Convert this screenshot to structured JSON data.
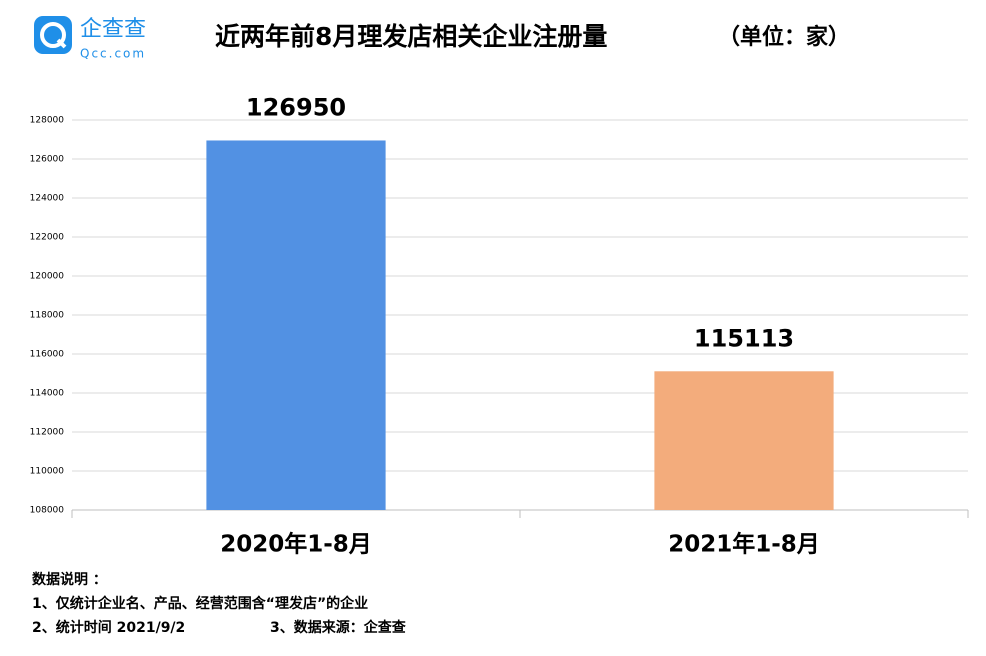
{
  "chart_data": {
    "type": "bar",
    "logo": {
      "name": "企查查",
      "site": "Qcc.com"
    },
    "title": "近两年前8月理发店相关企业注册量",
    "unit_note": "（单位：家）",
    "categories": [
      "2020年1-8月",
      "2021年1-8月"
    ],
    "values": [
      126950,
      115113
    ],
    "colors": [
      "#5291e3",
      "#f3ac7c"
    ],
    "ylim": [
      108000,
      128000
    ],
    "yticks": [
      108000,
      110000,
      112000,
      114000,
      116000,
      118000,
      120000,
      122000,
      124000,
      126000,
      128000
    ],
    "grid": true,
    "notes": [
      "数据说明 ：",
      "1、仅统计企业名、产品、经营范围含“理发店”的企业",
      "2、统计时间 2021/9/2",
      "3、数据来源：企查查"
    ]
  }
}
